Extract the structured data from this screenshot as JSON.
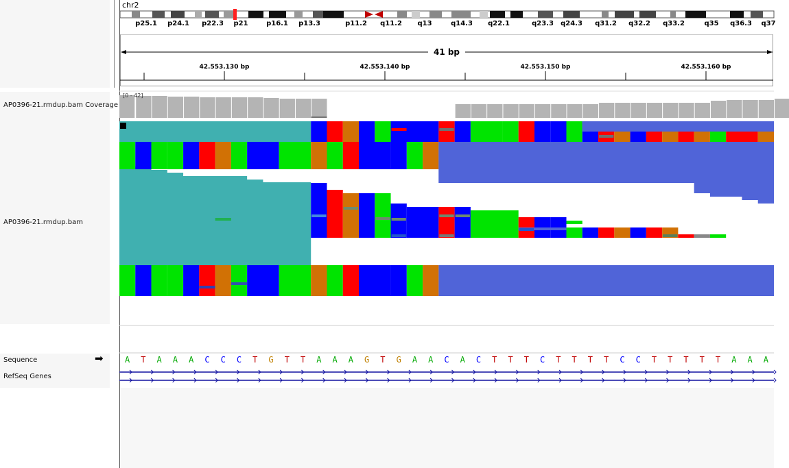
{
  "locus": {
    "chromosome": "chr2",
    "span_label": "41 bp",
    "cytobands": [
      "p25.1",
      "p24.1",
      "p22.3",
      "p21",
      "p16.1",
      "p13.3",
      "p11.2",
      "q11.2",
      "q13",
      "q14.3",
      "q22.1",
      "q23.3",
      "q24.3",
      "q31.2",
      "q32.2",
      "q33.2",
      "q35",
      "q36.3",
      "q37"
    ],
    "position_labels": [
      "42.553.130 bp",
      "42.553.140 bp",
      "42.553.150 bp",
      "42.553.160 bp"
    ]
  },
  "tracks": {
    "coverage_name": "AP0396-21.rmdup.bam Coverage",
    "coverage_range": "[0 - 42]",
    "alignment_name": "AP0396-21.rmdup.bam",
    "sequence_name": "Sequence",
    "genes_name": "RefSeq Genes",
    "sequence_arrow": "➡"
  },
  "sequence": [
    "A",
    "T",
    "A",
    "A",
    "A",
    "C",
    "C",
    "C",
    "T",
    "G",
    "T",
    "T",
    "A",
    "A",
    "A",
    "G",
    "T",
    "G",
    "A",
    "A",
    "C",
    "A",
    "C",
    "T",
    "T",
    "T",
    "C",
    "T",
    "T",
    "T",
    "T",
    "C",
    "C",
    "T",
    "T",
    "T",
    "T",
    "T",
    "A",
    "A",
    "A"
  ],
  "colors": {
    "A": "#00e400",
    "C": "#0000ff",
    "G": "#d17105",
    "T": "#ff0000",
    "softclip": "#40b0b0",
    "read": "#5064d8",
    "coverage": "#b4b4b4",
    "seqA": "#00a800",
    "seqC": "#0000ff",
    "seqG": "#c08000",
    "seqT": "#c00000"
  }
}
